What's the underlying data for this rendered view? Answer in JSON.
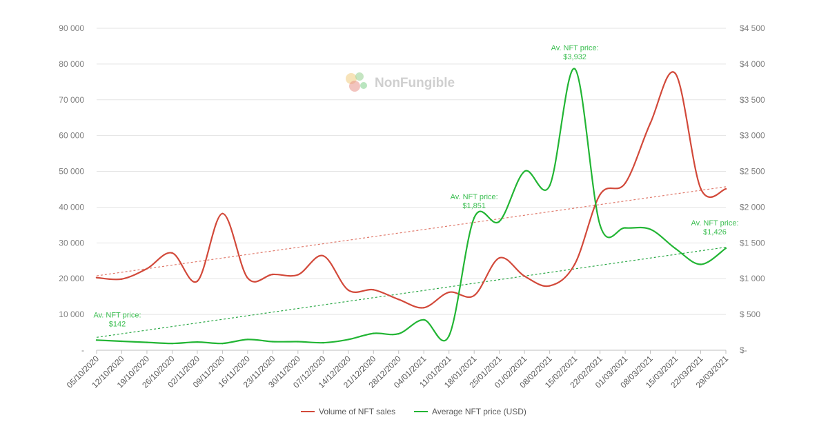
{
  "watermark": {
    "text": "NonFungible"
  },
  "legend": [
    {
      "label": "Volume of NFT sales",
      "color": "#d2493a"
    },
    {
      "label": "Average NFT price (USD)",
      "color": "#22b534"
    }
  ],
  "chart_data": {
    "type": "line",
    "title": "",
    "x": [
      "05/10/2020",
      "12/10/2020",
      "19/10/2020",
      "26/10/2020",
      "02/11/2020",
      "09/11/2020",
      "16/11/2020",
      "23/11/2020",
      "30/11/2020",
      "07/12/2020",
      "14/12/2020",
      "21/12/2020",
      "28/12/2020",
      "04/01/2021",
      "11/01/2021",
      "18/01/2021",
      "25/01/2021",
      "01/02/2021",
      "08/02/2021",
      "15/02/2021",
      "22/02/2021",
      "01/03/2021",
      "08/03/2021",
      "15/03/2021",
      "22/03/2021",
      "29/03/2021"
    ],
    "series": [
      {
        "name": "Volume of NFT sales",
        "axis": "left",
        "color": "#d2493a",
        "values": [
          20300,
          19900,
          22800,
          27200,
          19300,
          38200,
          20200,
          21200,
          21100,
          26400,
          16800,
          16900,
          14200,
          11900,
          16200,
          15300,
          25800,
          20700,
          18000,
          24100,
          43500,
          46700,
          63500,
          77300,
          45200,
          45100
        ]
      },
      {
        "name": "Average NFT price (USD)",
        "axis": "right",
        "color": "#22b534",
        "values": [
          142,
          125,
          110,
          95,
          115,
          95,
          150,
          120,
          120,
          105,
          150,
          235,
          230,
          425,
          200,
          1851,
          1800,
          2500,
          2300,
          3932,
          1750,
          1710,
          1690,
          1420,
          1200,
          1426
        ]
      }
    ],
    "trendlines": [
      {
        "series": "Volume of NFT sales",
        "axis": "left",
        "color": "#e07a6c",
        "from": 20800,
        "to": 45700
      },
      {
        "series": "Average NFT price (USD)",
        "axis": "right",
        "color": "#2aa845",
        "from": 180,
        "to": 1440
      }
    ],
    "y_left": {
      "ylim": [
        0,
        90000
      ],
      "ticks": [
        "-",
        "10 000",
        "20 000",
        "30 000",
        "40 000",
        "50 000",
        "60 000",
        "70 000",
        "80 000",
        "90 000"
      ]
    },
    "y_right": {
      "ylim": [
        0,
        4500
      ],
      "ticks": [
        "$-",
        "$ 500",
        "$1 000",
        "$1 500",
        "$2 000",
        "$2 500",
        "$3 000",
        "$3 500",
        "$4 000",
        "$4 500"
      ]
    },
    "annotations": [
      {
        "line1": "Av. NFT price:",
        "line2": "$142",
        "index": 0
      },
      {
        "line1": "Av. NFT price:",
        "line2": "$1,851",
        "index": 15
      },
      {
        "line1": "Av. NFT price:",
        "line2": "$3,932",
        "index": 19
      },
      {
        "line1": "Av. NFT price:",
        "line2": "$1,426",
        "index": 25
      }
    ],
    "grid": true,
    "legend_position": "bottom"
  }
}
